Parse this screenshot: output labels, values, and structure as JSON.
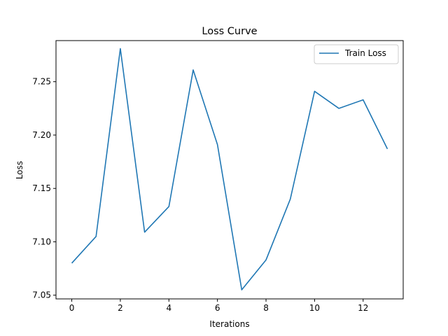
{
  "chart_data": {
    "type": "line",
    "title": "Loss Curve",
    "xlabel": "Iterations",
    "ylabel": "Loss",
    "xlim": [
      -0.65,
      13.65
    ],
    "ylim": [
      7.0465,
      7.2885
    ],
    "xticks": [
      0,
      2,
      4,
      6,
      8,
      10,
      12
    ],
    "xtick_labels": [
      "0",
      "2",
      "4",
      "6",
      "8",
      "10",
      "12"
    ],
    "yticks": [
      7.05,
      7.1,
      7.15,
      7.2,
      7.25
    ],
    "ytick_labels": [
      "7.05",
      "7.10",
      "7.15",
      "7.20",
      "7.25"
    ],
    "grid": false,
    "legend_position": "top-right",
    "series": [
      {
        "name": "Train Loss",
        "color": "#1f77b4",
        "x": [
          0,
          1,
          2,
          3,
          4,
          5,
          6,
          7,
          8,
          9,
          10,
          11,
          12,
          13
        ],
        "y": [
          7.08,
          7.105,
          7.281,
          7.109,
          7.133,
          7.261,
          7.191,
          7.055,
          7.083,
          7.14,
          7.241,
          7.225,
          7.233,
          7.187
        ]
      }
    ]
  }
}
